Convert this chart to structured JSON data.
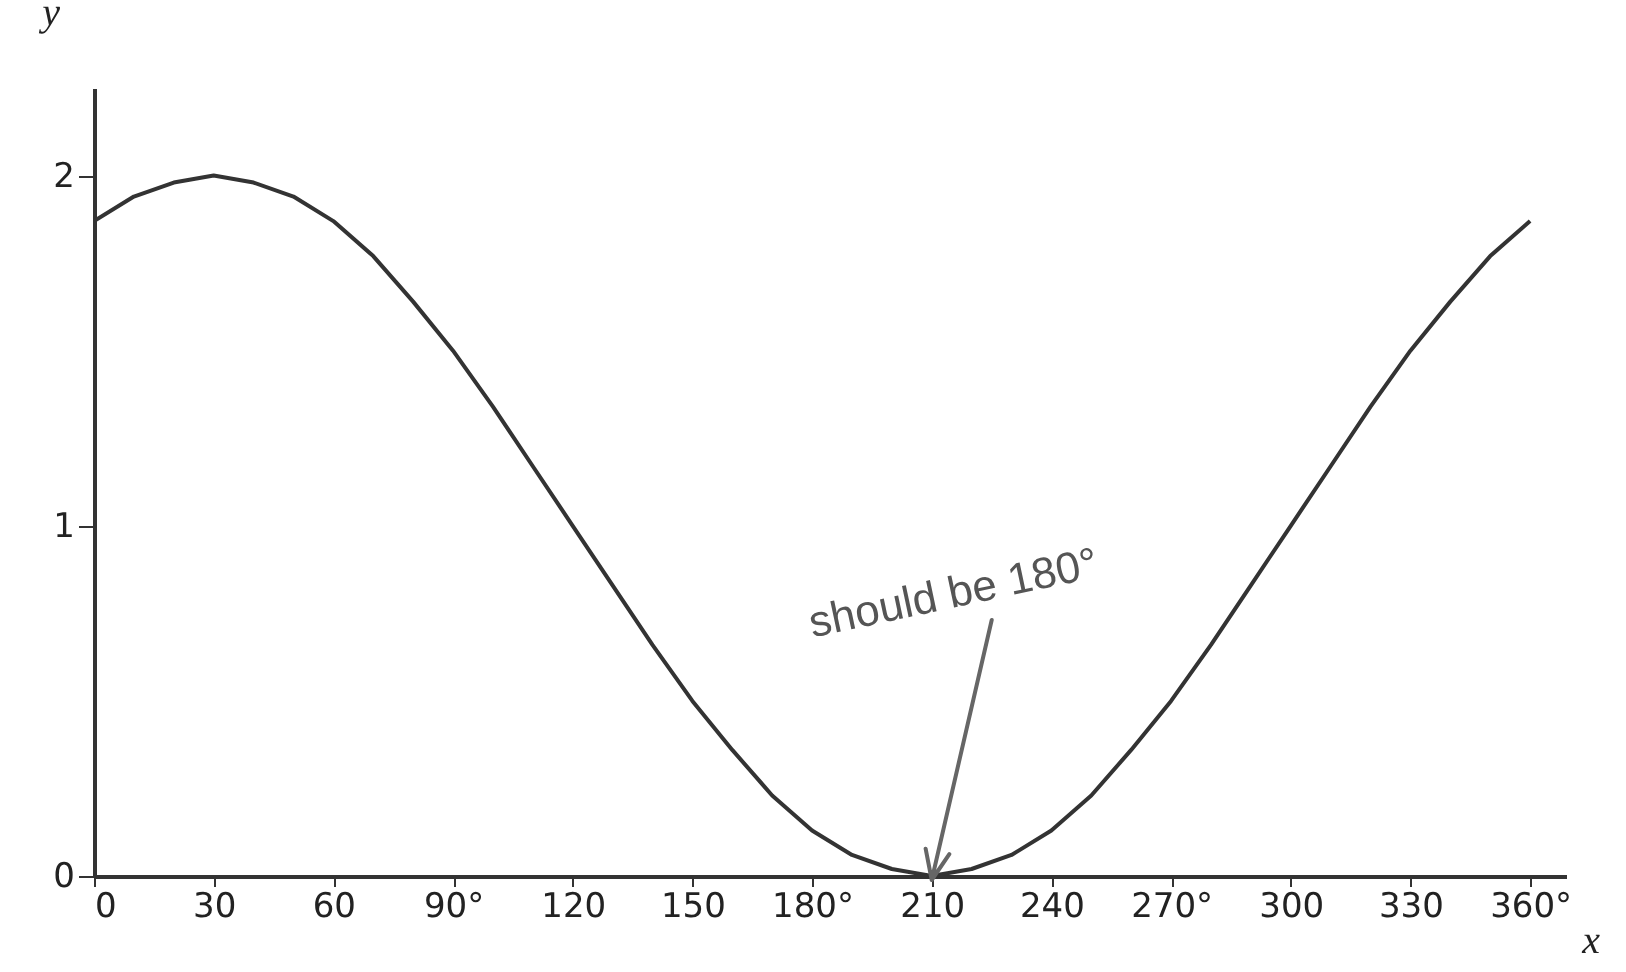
{
  "chart_data": {
    "type": "line",
    "xlabel": "x",
    "ylabel": "y",
    "x": [
      0,
      10,
      20,
      30,
      40,
      50,
      60,
      70,
      80,
      90,
      100,
      110,
      120,
      130,
      140,
      150,
      160,
      170,
      180,
      190,
      200,
      210,
      220,
      230,
      240,
      250,
      260,
      270,
      280,
      290,
      300,
      310,
      320,
      330,
      340,
      350,
      360
    ],
    "series": [
      {
        "color": "#333333",
        "values": [
          1.87,
          1.94,
          1.98,
          2,
          1.98,
          1.94,
          1.87,
          1.77,
          1.64,
          1.5,
          1.34,
          1.17,
          1,
          0.83,
          0.66,
          0.5,
          0.36,
          0.23,
          0.13,
          0.06,
          0.02,
          0,
          0.02,
          0.06,
          0.13,
          0.23,
          0.36,
          0.5,
          0.66,
          0.83,
          1,
          1.17,
          1.34,
          1.5,
          1.64,
          1.77,
          1.87
        ]
      }
    ],
    "xlim": [
      0,
      369
    ],
    "ylim": [
      0,
      2.25
    ],
    "xticks": [
      0,
      30,
      60,
      {
        "value": 90,
        "label": "90°"
      },
      120,
      150,
      {
        "value": 180,
        "label": "180°"
      },
      210,
      240,
      {
        "value": 270,
        "label": "270°"
      },
      300,
      330,
      {
        "value": 360,
        "label": "360°"
      }
    ],
    "yticks": [
      0,
      1,
      2
    ],
    "annotations": [
      "should be 180°"
    ]
  }
}
